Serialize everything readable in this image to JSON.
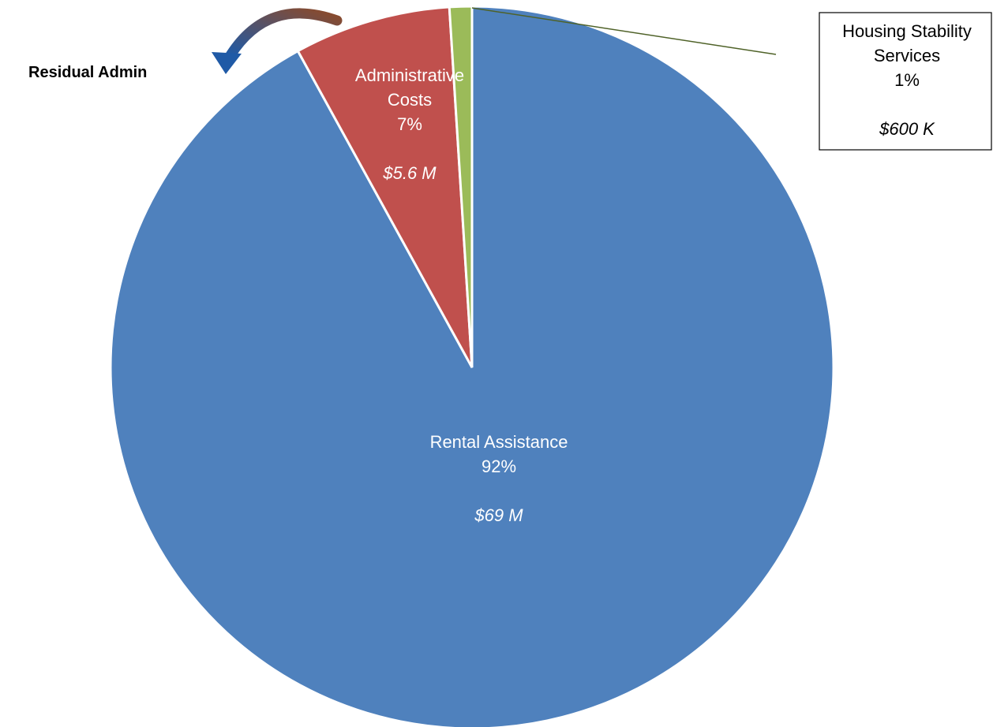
{
  "chart_data": {
    "type": "pie",
    "slices": [
      {
        "label_lines": [
          "Rental Assistance"
        ],
        "percent_label": "92%",
        "amount_label": "$69 M",
        "value": 92,
        "color": "#4F81BD"
      },
      {
        "label_lines": [
          "Administrative",
          "Costs"
        ],
        "percent_label": "7%",
        "amount_label": "$5.6 M",
        "value": 7,
        "color": "#C0504D"
      },
      {
        "label_lines": [
          "Housing Stability",
          "Services"
        ],
        "percent_label": "1%",
        "amount_label": "$600 K",
        "value": 1,
        "color": "#9BBB59"
      }
    ],
    "annotation": "Residual Admin",
    "arrow_colors": [
      "#1F5AA6",
      "#8B4A2B"
    ],
    "start_angle_deg": 0,
    "direction": "counterclockwise"
  }
}
